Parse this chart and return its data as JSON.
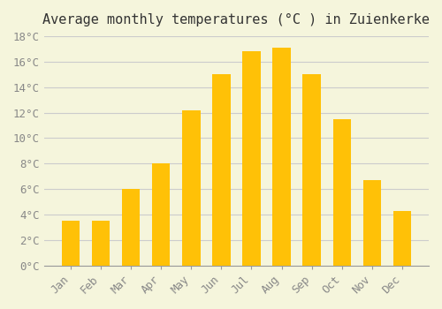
{
  "title": "Average monthly temperatures (°C ) in Zuienkerke",
  "months": [
    "Jan",
    "Feb",
    "Mar",
    "Apr",
    "May",
    "Jun",
    "Jul",
    "Aug",
    "Sep",
    "Oct",
    "Nov",
    "Dec"
  ],
  "values": [
    3.5,
    3.5,
    6.0,
    8.0,
    12.2,
    15.0,
    16.8,
    17.1,
    15.0,
    11.5,
    6.7,
    4.3
  ],
  "bar_color_top": "#FFC107",
  "bar_color_bottom": "#FFD966",
  "background_color": "#F5F5DC",
  "grid_color": "#CCCCCC",
  "ylim": [
    0,
    18
  ],
  "yticks": [
    0,
    2,
    4,
    6,
    8,
    10,
    12,
    14,
    16,
    18
  ],
  "title_fontsize": 11,
  "tick_fontsize": 9,
  "bar_width": 0.6,
  "title_color": "#333333",
  "tick_color": "#888888"
}
